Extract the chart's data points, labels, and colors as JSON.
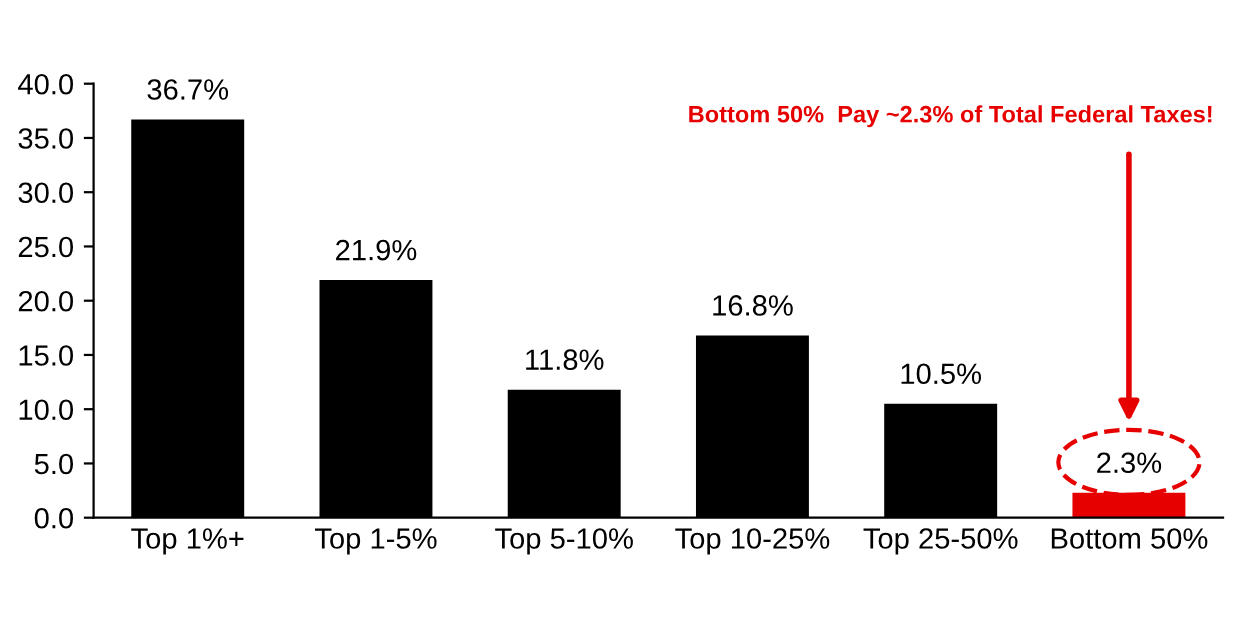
{
  "chart_data": {
    "type": "bar",
    "categories": [
      "Top 1%+",
      "Top 1-5%",
      "Top 5-10%",
      "Top 10-25%",
      "Top 25-50%",
      "Bottom 50%"
    ],
    "values": [
      36.7,
      21.9,
      11.8,
      16.8,
      10.5,
      2.3
    ],
    "colors": [
      "#000000",
      "#000000",
      "#000000",
      "#000000",
      "#000000",
      "#e60000"
    ],
    "value_labels": [
      "36.7%",
      "21.9%",
      "11.8%",
      "16.8%",
      "10.5%",
      "2.3%"
    ],
    "ylim": [
      0,
      40
    ],
    "yticks": [
      {
        "value": 0,
        "label": "0.0"
      },
      {
        "value": 5,
        "label": "5.0"
      },
      {
        "value": 10,
        "label": "10.0"
      },
      {
        "value": 15,
        "label": "15.0"
      },
      {
        "value": 20,
        "label": "20.0"
      },
      {
        "value": 25,
        "label": "25.0"
      },
      {
        "value": 30,
        "label": "30.0"
      },
      {
        "value": 35,
        "label": "35.0"
      },
      {
        "value": 40,
        "label": "40.0"
      }
    ],
    "grid": false,
    "legend": false,
    "annotations": [
      "Bottom 50%  Pay ~2.3% of Total Federal Taxes!"
    ]
  }
}
